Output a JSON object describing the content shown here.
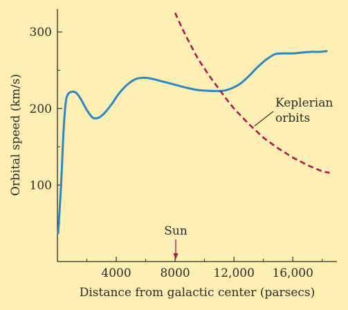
{
  "colors": {
    "background": "#fdeeb3",
    "axis": "#2a2a2a",
    "rotation_curve": "#2b87c4",
    "keplerian": "#b0125a",
    "sun_marker": "#b0125a"
  },
  "chart_data": {
    "type": "line",
    "xlabel": "Distance from galactic center (parsecs)",
    "ylabel": "Orbital speed (km/s)",
    "xlim": [
      0,
      19000
    ],
    "ylim": [
      0,
      330
    ],
    "x_ticks": [
      4000,
      8000,
      12000,
      16000
    ],
    "x_tick_labels": [
      "4000",
      "8000",
      "12,000",
      "16,000"
    ],
    "x_minor_ticks": [
      2000,
      6000,
      10000,
      14000,
      18000
    ],
    "y_ticks": [
      100,
      200,
      300
    ],
    "y_tick_labels": [
      "100",
      "200",
      "300"
    ],
    "y_minor_ticks": [
      50,
      150,
      250
    ],
    "grid": false,
    "series": [
      {
        "style": "solid",
        "x": [
          50,
          250,
          400,
          550,
          700,
          1000,
          1300,
          1600,
          2000,
          2400,
          2800,
          3200,
          3700,
          4200,
          4800,
          5400,
          6000,
          6600,
          7200,
          8000,
          8800,
          9600,
          10400,
          11200,
          11800,
          12400,
          13000,
          13600,
          14200,
          14800,
          15400,
          16000,
          16600,
          17200,
          17800,
          18300
        ],
        "y": [
          37,
          100,
          165,
          205,
          218,
          222,
          220,
          212,
          198,
          188,
          188,
          194,
          206,
          220,
          232,
          239,
          240,
          238,
          235,
          231,
          227,
          224,
          223,
          223,
          226,
          232,
          242,
          254,
          264,
          271,
          272,
          272,
          273,
          274,
          274,
          275
        ]
      },
      {
        "style": "dashed",
        "x": [
          8000,
          8500,
          9000,
          9500,
          10000,
          10500,
          11000,
          11500,
          12000,
          12500,
          13000,
          13500,
          14000,
          14500,
          15000,
          15500,
          16000,
          16500,
          17000,
          17500,
          18000,
          18500
        ],
        "y": [
          325,
          304,
          285,
          267,
          252,
          238,
          225,
          212,
          200,
          190,
          180,
          171,
          162,
          155,
          148,
          142,
          136,
          131,
          126,
          122,
          118,
          116
        ]
      }
    ],
    "annotations": [
      {
        "text": "Keplerian",
        "target_series": 1
      },
      {
        "text": "orbits",
        "target_series": 1
      },
      {
        "text": "Sun",
        "x": 8000
      }
    ]
  }
}
